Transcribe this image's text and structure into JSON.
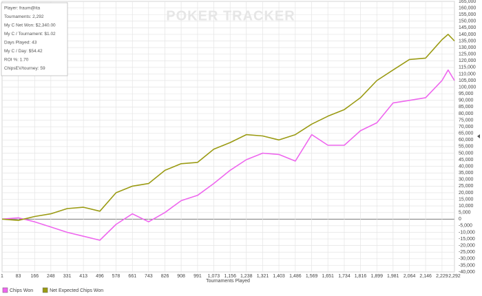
{
  "chart_data": {
    "type": "line",
    "watermark": "POKER TRACKER",
    "info_box": [
      "Player: fraum@ita",
      "Tournaments: 2,292",
      "My C Net Won: $2,340.00",
      "My C / Tournament: $1.02",
      "Days Played: 43",
      "My C / Day: $54.42",
      "ROI %: 1.70",
      "ChipsEV/tourney: 59"
    ],
    "xlabel": "Tournaments Played",
    "x": [
      1,
      83,
      166,
      248,
      331,
      413,
      496,
      578,
      661,
      743,
      826,
      908,
      991,
      1073,
      1156,
      1238,
      1321,
      1403,
      1486,
      1569,
      1651,
      1734,
      1816,
      1899,
      1981,
      2064,
      2146,
      2229,
      2260,
      2292
    ],
    "series": [
      {
        "name": "Chips Won",
        "color": "#ee66ee",
        "values": [
          0,
          1000,
          -2000,
          -6000,
          -10000,
          -13000,
          -16000,
          -4000,
          4000,
          -2000,
          5000,
          14000,
          18000,
          27000,
          37000,
          45000,
          50000,
          49000,
          44000,
          64000,
          56000,
          56000,
          67000,
          73000,
          88000,
          90000,
          92000,
          105000,
          113000,
          105000
        ]
      },
      {
        "name": "Net Expected Chips Won",
        "color": "#9a9a12",
        "values": [
          0,
          -1000,
          2000,
          4000,
          8000,
          9000,
          6000,
          20000,
          25000,
          27000,
          37000,
          42000,
          43000,
          53000,
          58000,
          64000,
          63000,
          60000,
          64000,
          72000,
          78000,
          83000,
          92000,
          105000,
          113000,
          121000,
          122000,
          136000,
          140000,
          135000
        ]
      }
    ],
    "xlim": [
      1,
      2292
    ],
    "xticks": [
      1,
      83,
      166,
      248,
      331,
      413,
      496,
      578,
      661,
      743,
      826,
      908,
      991,
      {
        "value": 1073,
        "label": "1,073"
      },
      {
        "value": 1156,
        "label": "1,156"
      },
      {
        "value": 1238,
        "label": "1,238"
      },
      {
        "value": 1321,
        "label": "1,321"
      },
      {
        "value": 1403,
        "label": "1,403"
      },
      {
        "value": 1486,
        "label": "1,486"
      },
      {
        "value": 1569,
        "label": "1,569"
      },
      {
        "value": 1651,
        "label": "1,651"
      },
      {
        "value": 1734,
        "label": "1,734"
      },
      {
        "value": 1816,
        "label": "1,816"
      },
      {
        "value": 1899,
        "label": "1,899"
      },
      {
        "value": 1981,
        "label": "1,981"
      },
      {
        "value": 2064,
        "label": "2,064"
      },
      {
        "value": 2146,
        "label": "2,146"
      },
      {
        "value": 2229,
        "label": "2,229"
      },
      {
        "value": 2292,
        "label": "2,292"
      }
    ],
    "ylim": [
      -40000,
      165000
    ],
    "yticks": [
      {
        "value": -40000,
        "label": "-40,000"
      },
      {
        "value": -35000,
        "label": "-35,000"
      },
      {
        "value": -30000,
        "label": "-30,000"
      },
      {
        "value": -25000,
        "label": "-25,000"
      },
      {
        "value": -20000,
        "label": "-20,000"
      },
      {
        "value": -15000,
        "label": "-15,000"
      },
      {
        "value": -10000,
        "label": "-10,000"
      },
      {
        "value": -5000,
        "label": "-5,000"
      },
      0,
      {
        "value": 5000,
        "label": "5,000"
      },
      {
        "value": 10000,
        "label": "10,000"
      },
      {
        "value": 15000,
        "label": "15,000"
      },
      {
        "value": 20000,
        "label": "20,000"
      },
      {
        "value": 25000,
        "label": "25,000"
      },
      {
        "value": 30000,
        "label": "30,000"
      },
      {
        "value": 35000,
        "label": "35,000"
      },
      {
        "value": 40000,
        "label": "40,000"
      },
      {
        "value": 45000,
        "label": "45,000"
      },
      {
        "value": 50000,
        "label": "50,000"
      },
      {
        "value": 55000,
        "label": "55,000"
      },
      {
        "value": 60000,
        "label": "60,000"
      },
      {
        "value": 65000,
        "label": "65,000"
      },
      {
        "value": 70000,
        "label": "70,000"
      },
      {
        "value": 75000,
        "label": "75,000"
      },
      {
        "value": 80000,
        "label": "80,000"
      },
      {
        "value": 85000,
        "label": "85,000"
      },
      {
        "value": 90000,
        "label": "90,000"
      },
      {
        "value": 95000,
        "label": "95,000"
      },
      {
        "value": 100000,
        "label": "100,000"
      },
      {
        "value": 105000,
        "label": "105,000"
      },
      {
        "value": 110000,
        "label": "110,000"
      },
      {
        "value": 115000,
        "label": "115,000"
      },
      {
        "value": 120000,
        "label": "120,000"
      },
      {
        "value": 125000,
        "label": "125,000"
      },
      {
        "value": 130000,
        "label": "130,000"
      },
      {
        "value": 135000,
        "label": "135,000"
      },
      {
        "value": 140000,
        "label": "140,000"
      },
      {
        "value": 145000,
        "label": "145,000"
      },
      {
        "value": 150000,
        "label": "150,000"
      },
      {
        "value": 155000,
        "label": "155,000"
      },
      {
        "value": 160000,
        "label": "160,000"
      },
      {
        "value": 165000,
        "label": "165,000"
      }
    ],
    "grid": true,
    "legend": "bottom-left"
  }
}
